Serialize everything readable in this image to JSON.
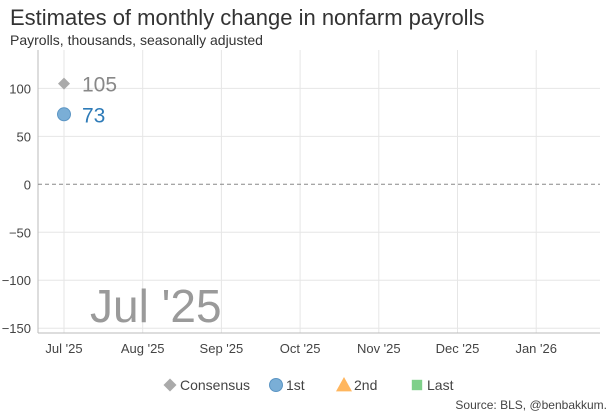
{
  "header": {
    "title": "Estimates of monthly change in nonfarm payrolls",
    "subtitle": "Payrolls, thousands, seasonally adjusted"
  },
  "footer": {
    "source": "Source: BLS, @benbakkum."
  },
  "watermark": {
    "text": "Jul '25"
  },
  "chart_data": {
    "type": "scatter",
    "categories": [
      "Jul '25",
      "Aug '25",
      "Sep '25",
      "Oct '25",
      "Nov '25",
      "Dec '25",
      "Jan '26"
    ],
    "yticks": [
      100,
      50,
      0,
      -50,
      -100,
      -150
    ],
    "ytick_labels": [
      "100",
      "50",
      "0",
      "−50",
      "−100",
      "−150"
    ],
    "ylim": [
      -155,
      140
    ],
    "grid": true,
    "zero_line": "dashed",
    "legend_position": "bottom",
    "series": [
      {
        "name": "Consensus",
        "marker": "diamond",
        "color": "#aaaaaa",
        "label_color": "#888888",
        "points": [
          {
            "x": "Jul '25",
            "y": 105,
            "label": "105"
          }
        ]
      },
      {
        "name": "1st",
        "marker": "circle",
        "color": "#7aaed6",
        "label_color": "#2e7bb8",
        "points": [
          {
            "x": "Jul '25",
            "y": 73,
            "label": "73"
          }
        ]
      },
      {
        "name": "2nd",
        "marker": "triangle",
        "color": "#ffb65e",
        "label_color": "#e68a1f",
        "points": []
      },
      {
        "name": "Last",
        "marker": "square",
        "color": "#7fd08a",
        "label_color": "#3c9a48",
        "points": []
      }
    ]
  }
}
